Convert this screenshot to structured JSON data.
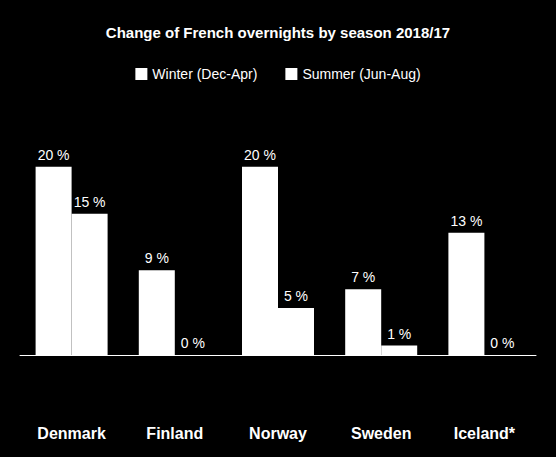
{
  "chart_data": {
    "type": "bar",
    "title": "Change of French overnights by season 2018/17",
    "categories": [
      "Denmark",
      "Finland",
      "Norway",
      "Sweden",
      "Iceland*"
    ],
    "series": [
      {
        "name": "Winter (Dec-Apr)",
        "color": "#ffffff",
        "values": [
          20,
          9,
          20,
          7,
          13
        ],
        "value_labels": [
          "20 %",
          "9 %",
          "20 %",
          "7 %",
          "13 %"
        ]
      },
      {
        "name": "Summer (Jun-Aug)",
        "color": "#ffffff",
        "values": [
          15,
          0,
          5,
          1,
          0
        ],
        "value_labels": [
          "15 %",
          "0 %",
          "5 %",
          "1 %",
          "0 %"
        ]
      }
    ],
    "ylim": [
      0,
      22
    ],
    "yticks": [
      0,
      22
    ],
    "grid": false,
    "legend": "top",
    "data_labels": true,
    "tick_labels": "x"
  }
}
